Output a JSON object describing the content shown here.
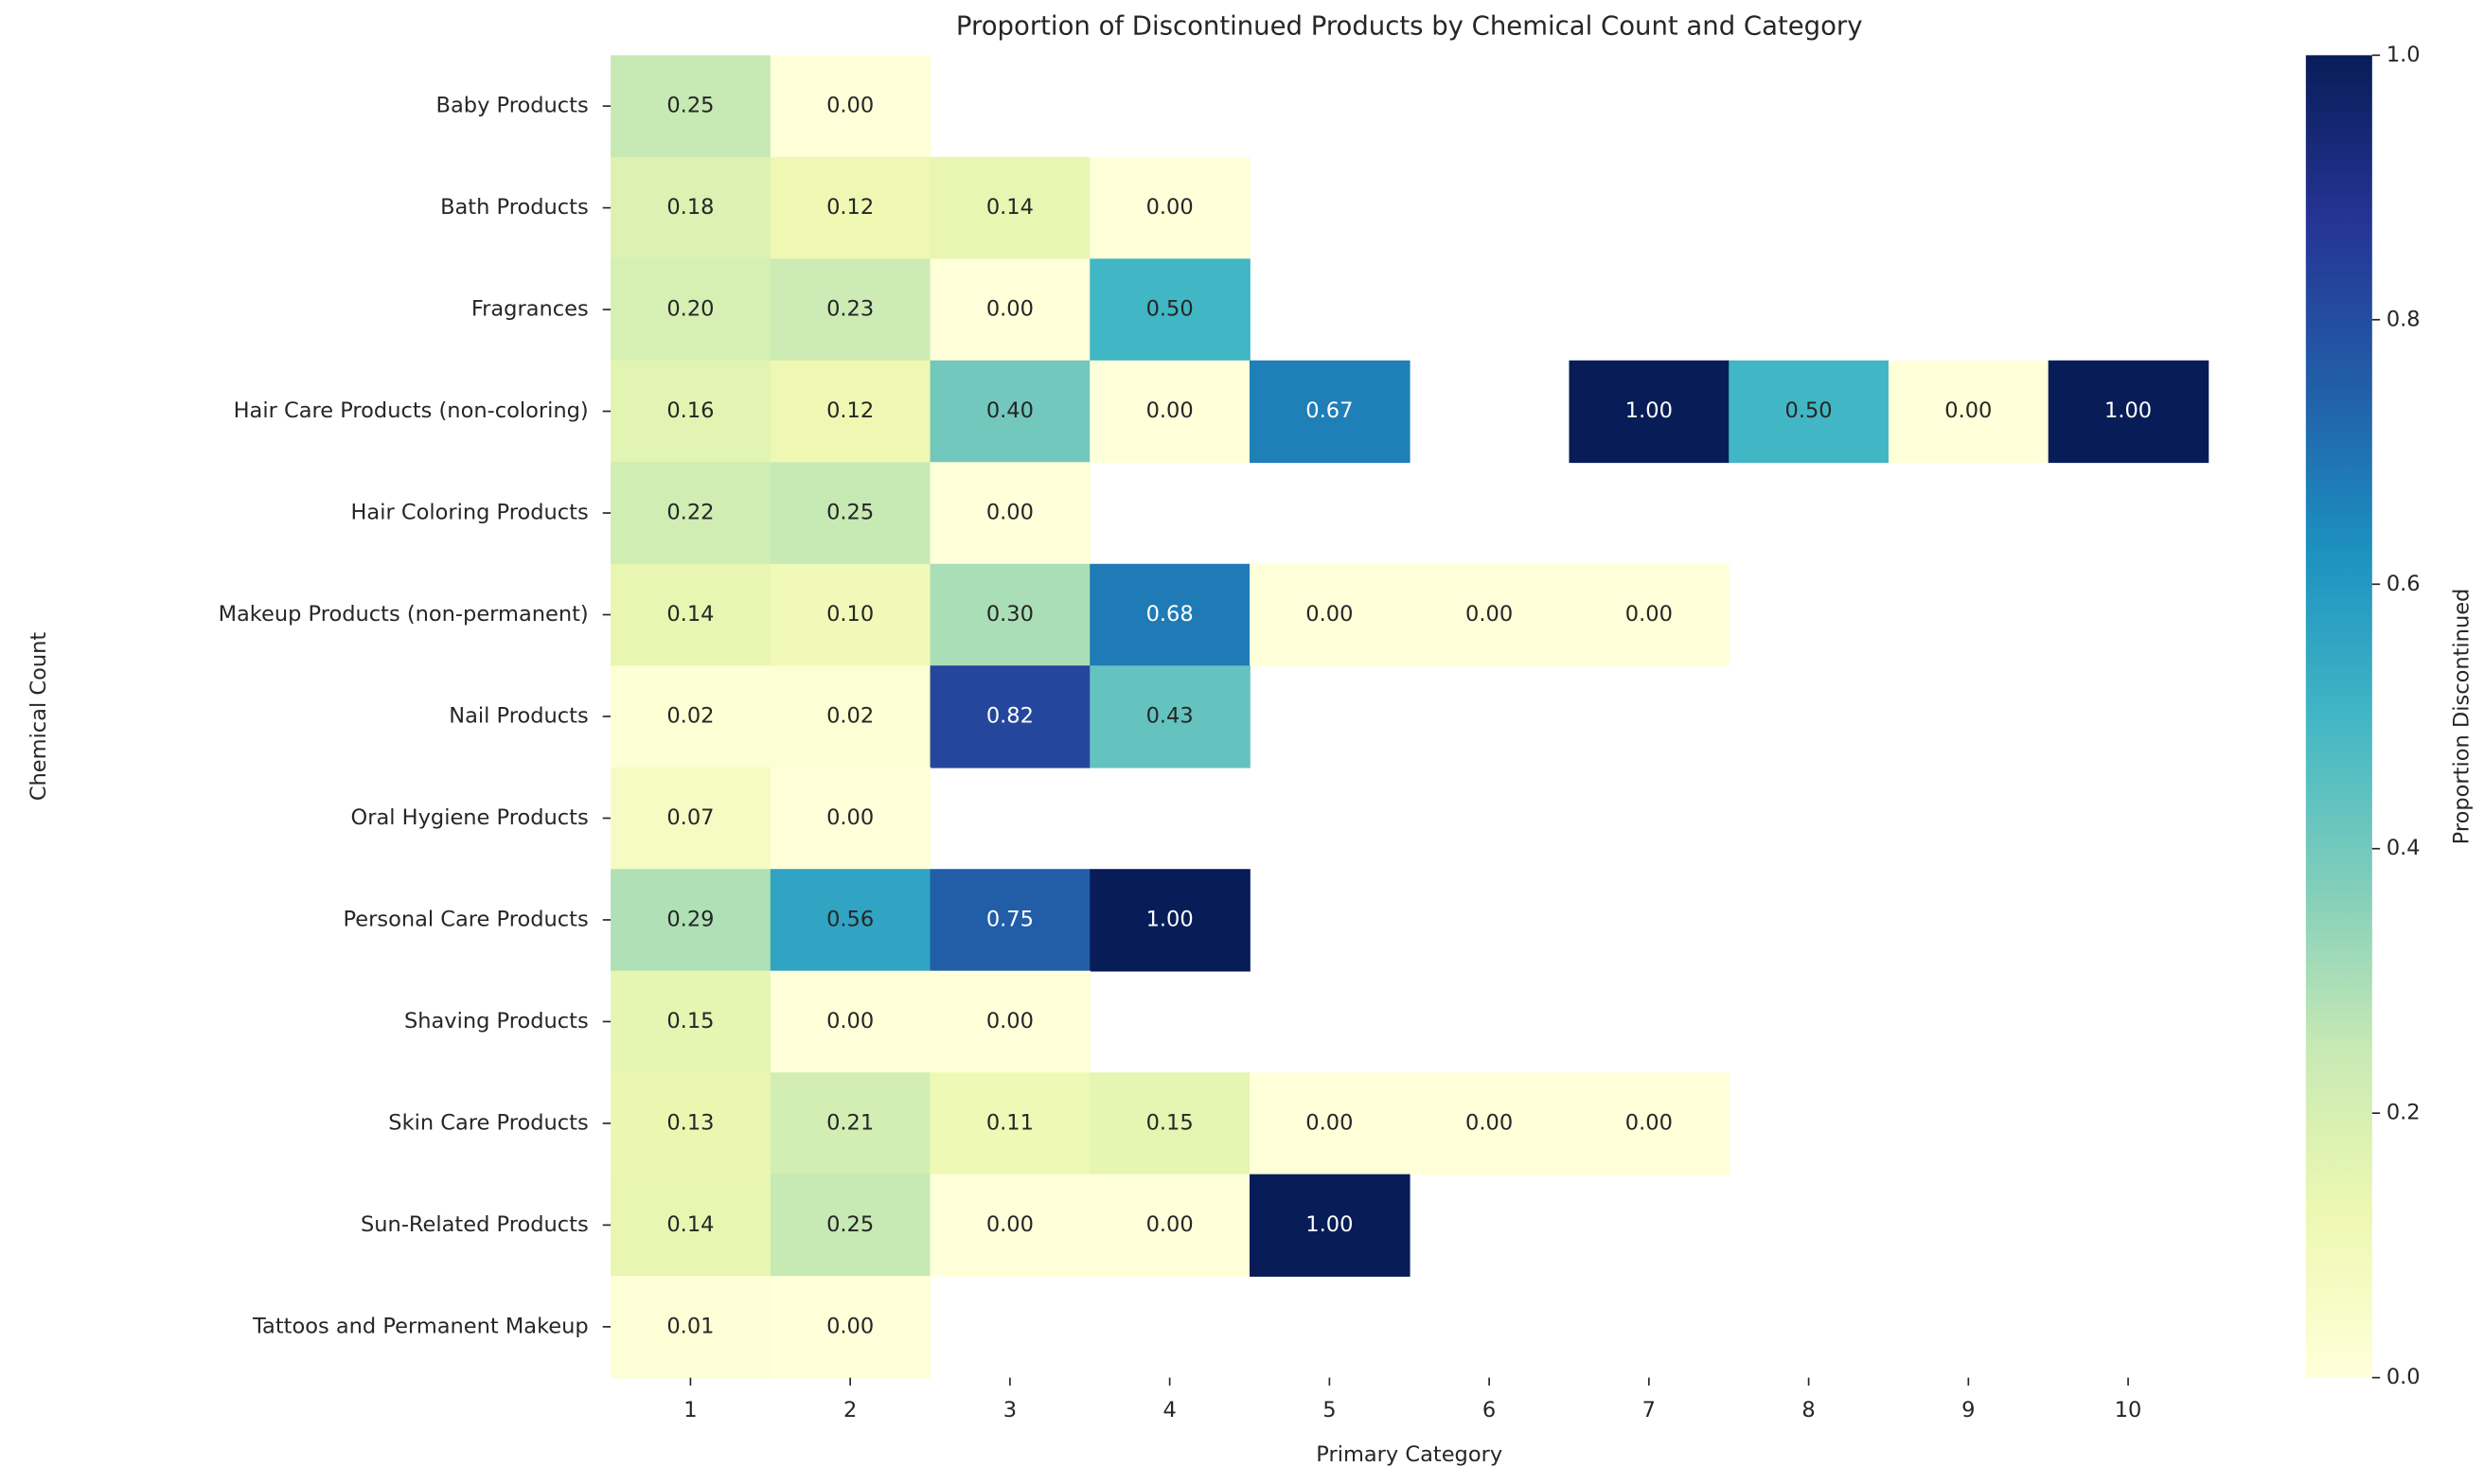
{
  "chart_data": {
    "type": "heatmap",
    "title": "Proportion of Discontinued Products by Chemical Count and Category",
    "x_label": "Primary Category",
    "y_label": "Chemical Count",
    "x": [
      1,
      2,
      3,
      4,
      5,
      6,
      7,
      8,
      9,
      10
    ],
    "y": [
      "Baby Products",
      "Bath Products",
      "Fragrances",
      "Hair Care Products (non-coloring)",
      "Hair Coloring Products",
      "Makeup Products (non-permanent)",
      "Nail Products",
      "Oral Hygiene Products",
      "Personal Care Products",
      "Shaving Products",
      "Skin Care Products",
      "Sun-Related Products",
      "Tattoos and Permanent Makeup"
    ],
    "values": [
      [
        0.25,
        0.0,
        null,
        null,
        null,
        null,
        null,
        null,
        null,
        null
      ],
      [
        0.18,
        0.12,
        0.14,
        0.0,
        null,
        null,
        null,
        null,
        null,
        null
      ],
      [
        0.2,
        0.23,
        0.0,
        0.5,
        null,
        null,
        null,
        null,
        null,
        null
      ],
      [
        0.16,
        0.12,
        0.4,
        0.0,
        0.67,
        null,
        1.0,
        0.5,
        0.0,
        1.0
      ],
      [
        0.22,
        0.25,
        0.0,
        null,
        null,
        null,
        null,
        null,
        null,
        null
      ],
      [
        0.14,
        0.1,
        0.3,
        0.68,
        0.0,
        0.0,
        0.0,
        null,
        null,
        null
      ],
      [
        0.02,
        0.02,
        0.82,
        0.43,
        null,
        null,
        null,
        null,
        null,
        null
      ],
      [
        0.07,
        0.0,
        null,
        null,
        null,
        null,
        null,
        null,
        null,
        null
      ],
      [
        0.29,
        0.56,
        0.75,
        1.0,
        null,
        null,
        null,
        null,
        null,
        null
      ],
      [
        0.15,
        0.0,
        0.0,
        null,
        null,
        null,
        null,
        null,
        null,
        null
      ],
      [
        0.13,
        0.21,
        0.11,
        0.15,
        0.0,
        0.0,
        0.0,
        null,
        null,
        null
      ],
      [
        0.14,
        0.25,
        0.0,
        0.0,
        1.0,
        null,
        null,
        null,
        null,
        null
      ],
      [
        0.01,
        0.0,
        null,
        null,
        null,
        null,
        null,
        null,
        null,
        null
      ]
    ],
    "value_labels": [
      [
        "0.25",
        "0.00",
        null,
        null,
        null,
        null,
        null,
        null,
        null,
        null
      ],
      [
        "0.18",
        "0.12",
        "0.14",
        "0.00",
        null,
        null,
        null,
        null,
        null,
        null
      ],
      [
        "0.20",
        "0.23",
        "0.00",
        "0.50",
        null,
        null,
        null,
        null,
        null,
        null
      ],
      [
        "0.16",
        "0.12",
        "0.40",
        "0.00",
        "0.67",
        null,
        "1.00",
        "0.50",
        "0.00",
        "1.00"
      ],
      [
        "0.22",
        "0.25",
        "0.00",
        null,
        null,
        null,
        null,
        null,
        null,
        null
      ],
      [
        "0.14",
        "0.10",
        "0.30",
        "0.68",
        "0.00",
        "0.00",
        "0.00",
        null,
        null,
        null
      ],
      [
        "0.02",
        "0.02",
        "0.82",
        "0.43",
        null,
        null,
        null,
        null,
        null,
        null
      ],
      [
        "0.07",
        "0.00",
        null,
        null,
        null,
        null,
        null,
        null,
        null,
        null
      ],
      [
        "0.29",
        "0.56",
        "0.75",
        "1.00",
        null,
        null,
        null,
        null,
        null,
        null
      ],
      [
        "0.15",
        "0.00",
        "0.00",
        null,
        null,
        null,
        null,
        null,
        null,
        null
      ],
      [
        "0.13",
        "0.21",
        "0.11",
        "0.15",
        "0.00",
        "0.00",
        "0.00",
        null,
        null,
        null
      ],
      [
        "0.14",
        "0.25",
        "0.00",
        "0.00",
        "1.00",
        null,
        null,
        null,
        null,
        null
      ],
      [
        "0.01",
        "0.00",
        null,
        null,
        null,
        null,
        null,
        null,
        null,
        null
      ]
    ],
    "colorbar_label": "Proportion Discontinued",
    "clim": [
      0,
      1
    ],
    "cticks": [
      {
        "value": 0,
        "label": "0.0"
      },
      0.2,
      0.4,
      0.6,
      0.8,
      {
        "value": 1,
        "label": "1.0"
      }
    ],
    "colorscale": [
      "#ffffd9",
      "#edf8b1",
      "#c7e9b4",
      "#7fcdbb",
      "#41b6c4",
      "#1d91c0",
      "#225ea8",
      "#253494",
      "#081d58"
    ]
  }
}
